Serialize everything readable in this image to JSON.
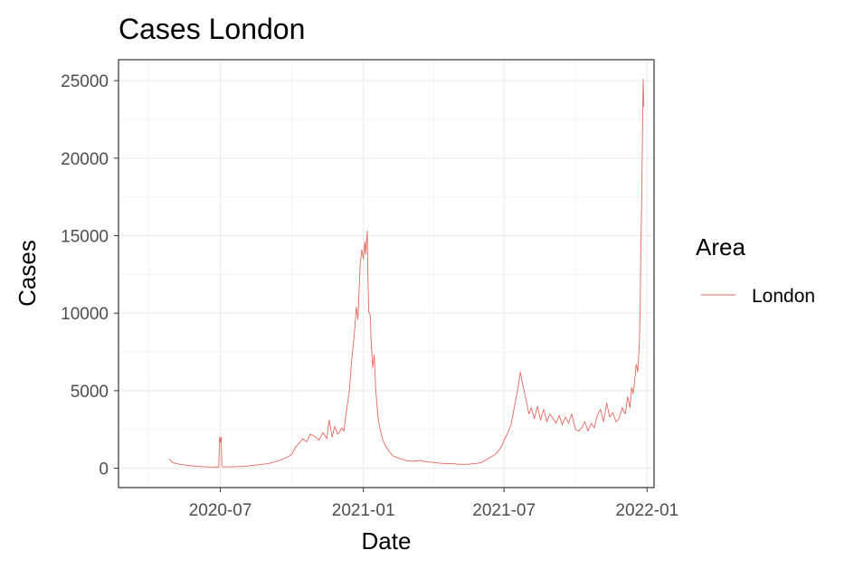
{
  "chart_data": {
    "type": "line",
    "title": "Cases London",
    "xlabel": "Date",
    "ylabel": "Cases",
    "x_scale": "date",
    "xlim": [
      "2020-02-21",
      "2022-01-10"
    ],
    "ylim": [
      -1250,
      26350
    ],
    "x_ticks": [
      "2020-07-01",
      "2021-01-01",
      "2021-07-01",
      "2022-01-01"
    ],
    "x_tick_labels": [
      "2020-07",
      "2021-01",
      "2021-07",
      "2022-01"
    ],
    "y_ticks": [
      0,
      5000,
      10000,
      15000,
      20000,
      25000
    ],
    "y_tick_labels": [
      "0",
      "5000",
      "10000",
      "15000",
      "20000",
      "25000"
    ],
    "grid": true,
    "legend": {
      "title": "Area",
      "position": "right"
    },
    "series": [
      {
        "name": "London",
        "color": "#e8675e",
        "x": [
          "2020-04-26",
          "2020-05-01",
          "2020-05-10",
          "2020-05-20",
          "2020-06-01",
          "2020-06-15",
          "2020-06-29",
          "2020-06-30",
          "2020-07-01",
          "2020-07-02",
          "2020-07-03",
          "2020-07-05",
          "2020-07-15",
          "2020-08-01",
          "2020-08-15",
          "2020-09-01",
          "2020-09-15",
          "2020-09-25",
          "2020-10-01",
          "2020-10-05",
          "2020-10-10",
          "2020-10-15",
          "2020-10-20",
          "2020-10-25",
          "2020-11-01",
          "2020-11-05",
          "2020-11-10",
          "2020-11-15",
          "2020-11-18",
          "2020-11-22",
          "2020-11-25",
          "2020-11-29",
          "2020-12-01",
          "2020-12-04",
          "2020-12-07",
          "2020-12-10",
          "2020-12-14",
          "2020-12-17",
          "2020-12-20",
          "2020-12-23",
          "2020-12-25",
          "2020-12-28",
          "2020-12-30",
          "2021-01-01",
          "2021-01-03",
          "2021-01-04",
          "2021-01-06",
          "2021-01-07",
          "2021-01-08",
          "2021-01-10",
          "2021-01-11",
          "2021-01-13",
          "2021-01-15",
          "2021-01-17",
          "2021-01-20",
          "2021-01-23",
          "2021-01-26",
          "2021-01-30",
          "2021-02-03",
          "2021-02-08",
          "2021-02-13",
          "2021-02-18",
          "2021-02-25",
          "2021-03-05",
          "2021-03-15",
          "2021-03-25",
          "2021-04-05",
          "2021-04-15",
          "2021-04-25",
          "2021-05-05",
          "2021-05-15",
          "2021-05-25",
          "2021-06-01",
          "2021-06-10",
          "2021-06-20",
          "2021-06-28",
          "2021-07-01",
          "2021-07-05",
          "2021-07-10",
          "2021-07-13",
          "2021-07-16",
          "2021-07-19",
          "2021-07-22",
          "2021-07-25",
          "2021-07-29",
          "2021-08-02",
          "2021-08-05",
          "2021-08-09",
          "2021-08-13",
          "2021-08-17",
          "2021-08-21",
          "2021-08-25",
          "2021-08-29",
          "2021-09-02",
          "2021-09-06",
          "2021-09-10",
          "2021-09-14",
          "2021-09-18",
          "2021-09-22",
          "2021-09-26",
          "2021-10-01",
          "2021-10-05",
          "2021-10-09",
          "2021-10-13",
          "2021-10-17",
          "2021-10-21",
          "2021-10-25",
          "2021-10-29",
          "2021-11-02",
          "2021-11-06",
          "2021-11-10",
          "2021-11-14",
          "2021-11-18",
          "2021-11-22",
          "2021-11-26",
          "2021-11-30",
          "2021-12-04",
          "2021-12-07",
          "2021-12-10",
          "2021-12-12",
          "2021-12-14",
          "2021-12-16",
          "2021-12-18",
          "2021-12-20",
          "2021-12-22",
          "2021-12-23",
          "2021-12-24",
          "2021-12-25",
          "2021-12-26",
          "2021-12-27",
          "2021-12-28"
        ],
        "y": [
          600,
          350,
          250,
          180,
          120,
          80,
          70,
          2000,
          1700,
          2000,
          100,
          80,
          90,
          120,
          200,
          300,
          500,
          700,
          900,
          1300,
          1600,
          1900,
          1700,
          2200,
          2000,
          1800,
          2300,
          1900,
          3100,
          2000,
          2700,
          2200,
          2300,
          2600,
          2400,
          3600,
          5000,
          7000,
          8400,
          10400,
          9600,
          13200,
          14100,
          13500,
          14600,
          13800,
          15300,
          12000,
          10100,
          9800,
          8200,
          6500,
          7300,
          5000,
          3200,
          2400,
          1800,
          1400,
          1100,
          800,
          700,
          600,
          500,
          450,
          500,
          400,
          350,
          300,
          300,
          250,
          250,
          300,
          350,
          600,
          900,
          1400,
          1800,
          2200,
          2800,
          3600,
          4400,
          5200,
          6200,
          5400,
          4500,
          3500,
          3900,
          3200,
          4000,
          3100,
          3800,
          3000,
          3500,
          3200,
          2900,
          3400,
          2800,
          3300,
          2900,
          3500,
          2500,
          2400,
          2600,
          3000,
          2400,
          2900,
          2600,
          3400,
          3800,
          3000,
          4200,
          3300,
          3600,
          3000,
          3200,
          3900,
          3500,
          4600,
          3900,
          5200,
          4800,
          5600,
          6700,
          6200,
          8000,
          10000,
          14000,
          17000,
          21000,
          25100,
          23300
        ]
      }
    ]
  }
}
